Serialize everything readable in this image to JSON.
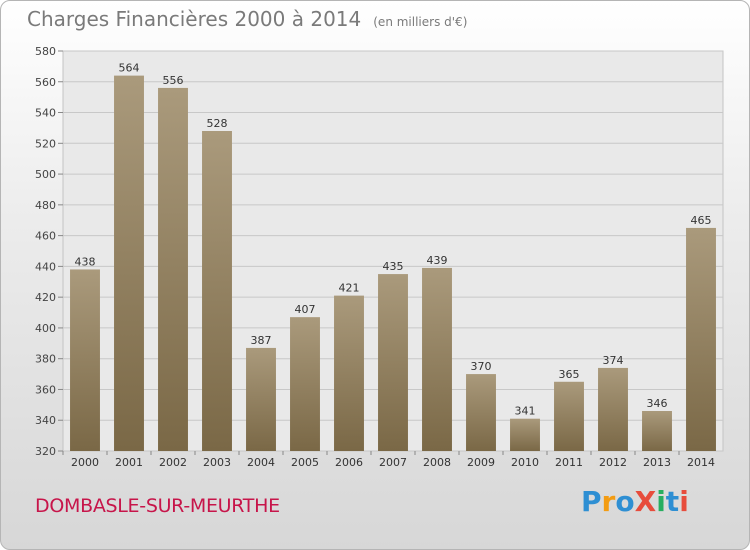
{
  "header": {
    "title": "Charges Financières 2000 à 2014",
    "subtitle": "(en milliers d'€)"
  },
  "footer": {
    "commune": "DOMBASLE-SUR-MEURTHE",
    "logo_text": "ProXiti",
    "logo_colors": [
      "#2e8fd3",
      "#f39c12",
      "#2e8fd3",
      "#e74c3c",
      "#27ae60",
      "#2e8fd3",
      "#e74c3c"
    ]
  },
  "colors": {
    "bar_top": "#aa9a7c",
    "bar_bottom": "#7a6846",
    "title": "#7a7a7a",
    "commune": "#c7154a"
  },
  "chart_data": {
    "type": "bar",
    "title": "Charges Financières 2000 à 2014",
    "subtitle": "(en milliers d'€)",
    "categories": [
      "2000",
      "2001",
      "2002",
      "2003",
      "2004",
      "2005",
      "2006",
      "2007",
      "2008",
      "2009",
      "2010",
      "2011",
      "2012",
      "2013",
      "2014"
    ],
    "values": [
      438,
      564,
      556,
      528,
      387,
      407,
      421,
      435,
      439,
      370,
      341,
      365,
      374,
      346,
      465
    ],
    "ylim": [
      320,
      580
    ],
    "yticks": [
      320,
      340,
      360,
      380,
      400,
      420,
      440,
      460,
      480,
      500,
      520,
      540,
      560,
      580
    ],
    "grid": true,
    "data_labels": true
  }
}
